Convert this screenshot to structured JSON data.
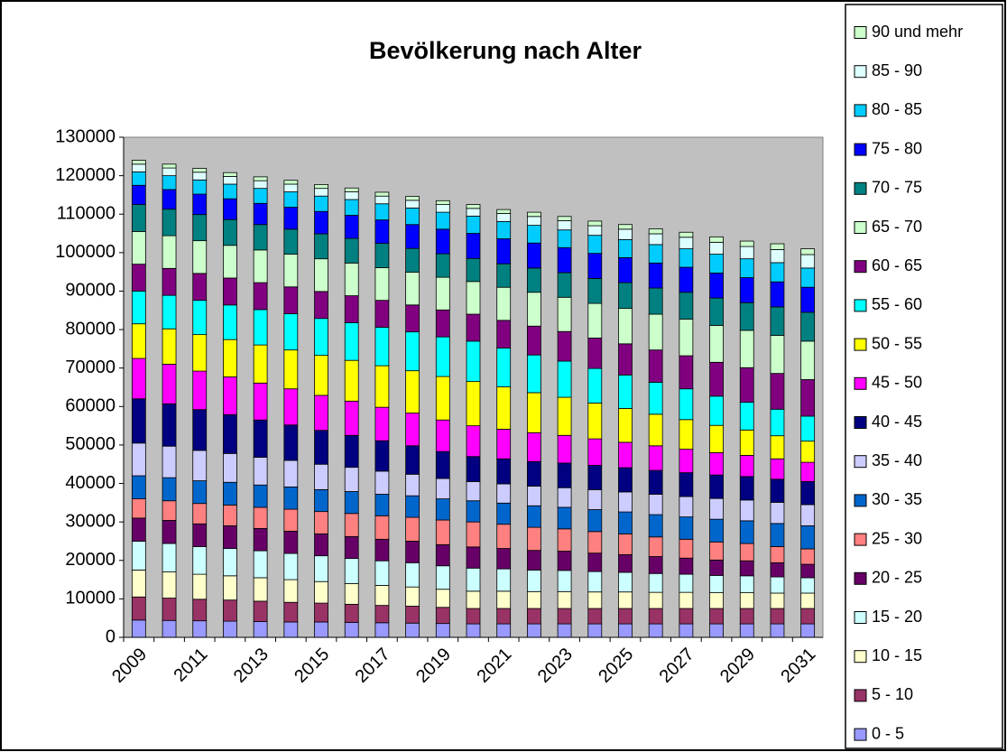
{
  "chart_data": {
    "type": "bar",
    "stacked": true,
    "title": "Bevölkerung nach Alter",
    "categories": [
      "2009",
      null,
      "2011",
      null,
      "2013",
      null,
      "2015",
      null,
      "2017",
      null,
      "2019",
      null,
      "2021",
      null,
      "2023",
      null,
      "2025",
      null,
      "2027",
      null,
      "2029",
      null,
      "2031"
    ],
    "ylim": [
      0,
      130000
    ],
    "yticks": [
      0,
      10000,
      20000,
      30000,
      40000,
      50000,
      60000,
      70000,
      80000,
      90000,
      100000,
      110000,
      120000,
      130000
    ],
    "grid": false,
    "legend": "right",
    "series": [
      {
        "name": "0 - 5",
        "color": "#9999FF",
        "values": [
          4500,
          4400,
          4300,
          4200,
          4100,
          4000,
          4000,
          3900,
          3800,
          3700,
          3600,
          3500,
          3500,
          3500,
          3500,
          3500,
          3500,
          3500,
          3500,
          3500,
          3500,
          3500,
          3500
        ]
      },
      {
        "name": "5 - 10",
        "color": "#993366",
        "values": [
          6000,
          5800,
          5600,
          5500,
          5300,
          5100,
          4900,
          4700,
          4500,
          4400,
          4200,
          4000,
          4000,
          4000,
          4000,
          4000,
          4000,
          4000,
          4000,
          4000,
          4000,
          4000,
          4000
        ]
      },
      {
        "name": "10 - 15",
        "color": "#FFFFCC",
        "values": [
          7000,
          6800,
          6500,
          6300,
          6100,
          5900,
          5600,
          5400,
          5200,
          5000,
          4700,
          4500,
          4500,
          4400,
          4400,
          4300,
          4300,
          4200,
          4200,
          4100,
          4100,
          4000,
          4000
        ]
      },
      {
        "name": "15 - 20",
        "color": "#CCFFFF",
        "values": [
          7500,
          7400,
          7200,
          7100,
          7000,
          6800,
          6700,
          6500,
          6400,
          6300,
          6100,
          6000,
          5800,
          5600,
          5500,
          5300,
          5100,
          4900,
          4700,
          4500,
          4400,
          4200,
          4000
        ]
      },
      {
        "name": "20 - 25",
        "color": "#660066",
        "values": [
          6000,
          6000,
          5900,
          5900,
          5800,
          5800,
          5700,
          5700,
          5600,
          5600,
          5500,
          5500,
          5300,
          5100,
          5000,
          4800,
          4600,
          4400,
          4200,
          4000,
          3900,
          3700,
          3500
        ]
      },
      {
        "name": "25 - 30",
        "color": "#FF8080",
        "values": [
          5000,
          5100,
          5300,
          5400,
          5500,
          5700,
          5800,
          6000,
          6100,
          6200,
          6400,
          6500,
          6300,
          6000,
          5800,
          5600,
          5400,
          5100,
          4900,
          4700,
          4500,
          4200,
          4000
        ]
      },
      {
        "name": "30 - 35",
        "color": "#0066CC",
        "values": [
          6000,
          6000,
          5900,
          5900,
          5800,
          5800,
          5700,
          5700,
          5600,
          5600,
          5500,
          5500,
          5500,
          5600,
          5600,
          5700,
          5700,
          5800,
          5800,
          5900,
          5900,
          6000,
          6000
        ]
      },
      {
        "name": "35 - 40",
        "color": "#CCCCFF",
        "values": [
          8500,
          8200,
          7900,
          7500,
          7200,
          6900,
          6600,
          6300,
          6000,
          5600,
          5300,
          5000,
          5000,
          5100,
          5100,
          5200,
          5200,
          5300,
          5300,
          5400,
          5400,
          5500,
          5500
        ]
      },
      {
        "name": "40 - 45",
        "color": "#000080",
        "values": [
          11500,
          11000,
          10600,
          10100,
          9700,
          9200,
          8800,
          8300,
          7900,
          7400,
          7000,
          6500,
          6500,
          6400,
          6400,
          6300,
          6300,
          6200,
          6200,
          6100,
          6100,
          6000,
          6000
        ]
      },
      {
        "name": "45 - 50",
        "color": "#FF00FF",
        "values": [
          10500,
          10300,
          10000,
          9800,
          9600,
          9400,
          9100,
          8900,
          8700,
          8500,
          8200,
          8000,
          7700,
          7500,
          7200,
          6900,
          6600,
          6400,
          6100,
          5800,
          5500,
          5300,
          5000
        ]
      },
      {
        "name": "50 - 55",
        "color": "#FFFF00",
        "values": [
          9000,
          9200,
          9500,
          9700,
          9900,
          10100,
          10400,
          10600,
          10800,
          11000,
          11300,
          11500,
          11000,
          10400,
          9900,
          9300,
          8800,
          8200,
          7700,
          7100,
          6600,
          6000,
          5500
        ]
      },
      {
        "name": "55 - 60",
        "color": "#00FFFF",
        "values": [
          8500,
          8700,
          8900,
          9000,
          9200,
          9400,
          9600,
          9800,
          10000,
          10100,
          10300,
          10500,
          10100,
          9800,
          9400,
          9000,
          8700,
          8300,
          8000,
          7600,
          7200,
          6900,
          6500
        ]
      },
      {
        "name": "60 - 65",
        "color": "#800080",
        "values": [
          7000,
          7000,
          7000,
          7000,
          7000,
          7000,
          7000,
          7000,
          7000,
          7000,
          7000,
          7000,
          7200,
          7500,
          7700,
          7900,
          8100,
          8400,
          8600,
          8800,
          9000,
          9300,
          9500
        ]
      },
      {
        "name": "65 - 70",
        "color": "#CCFFCC",
        "values": [
          8500,
          8500,
          8500,
          8500,
          8500,
          8500,
          8500,
          8500,
          8500,
          8500,
          8500,
          8500,
          8600,
          8800,
          8900,
          9000,
          9200,
          9300,
          9500,
          9600,
          9700,
          9900,
          10000
        ]
      },
      {
        "name": "70 - 75",
        "color": "#008080",
        "values": [
          7000,
          6900,
          6800,
          6700,
          6600,
          6500,
          6500,
          6400,
          6300,
          6200,
          6100,
          6000,
          6100,
          6300,
          6400,
          6500,
          6700,
          6800,
          7000,
          7100,
          7200,
          7400,
          7500
        ]
      },
      {
        "name": "75 - 80",
        "color": "#0000FF",
        "values": [
          5000,
          5100,
          5300,
          5400,
          5500,
          5700,
          5800,
          6000,
          6100,
          6200,
          6400,
          6500,
          6500,
          6500,
          6500,
          6500,
          6500,
          6500,
          6500,
          6500,
          6500,
          6500,
          6500
        ]
      },
      {
        "name": "80 - 85",
        "color": "#00CCFF",
        "values": [
          3500,
          3600,
          3700,
          3800,
          3900,
          4000,
          4000,
          4100,
          4200,
          4300,
          4400,
          4500,
          4500,
          4600,
          4600,
          4700,
          4700,
          4800,
          4800,
          4900,
          4900,
          5000,
          5000
        ]
      },
      {
        "name": "85 - 90",
        "color": "#DDFFFF",
        "values": [
          2000,
          2000,
          2000,
          2000,
          2000,
          2000,
          2000,
          2000,
          2000,
          2000,
          2000,
          2000,
          2100,
          2300,
          2400,
          2500,
          2700,
          2800,
          3000,
          3100,
          3200,
          3400,
          3500
        ]
      },
      {
        "name": "90 und mehr",
        "color": "#CCFFCC",
        "values": [
          1000,
          1000,
          1000,
          1000,
          1000,
          1000,
          1000,
          1000,
          1000,
          1000,
          1000,
          1000,
          1000,
          1100,
          1100,
          1200,
          1200,
          1300,
          1300,
          1400,
          1400,
          1500,
          1500
        ]
      }
    ]
  }
}
